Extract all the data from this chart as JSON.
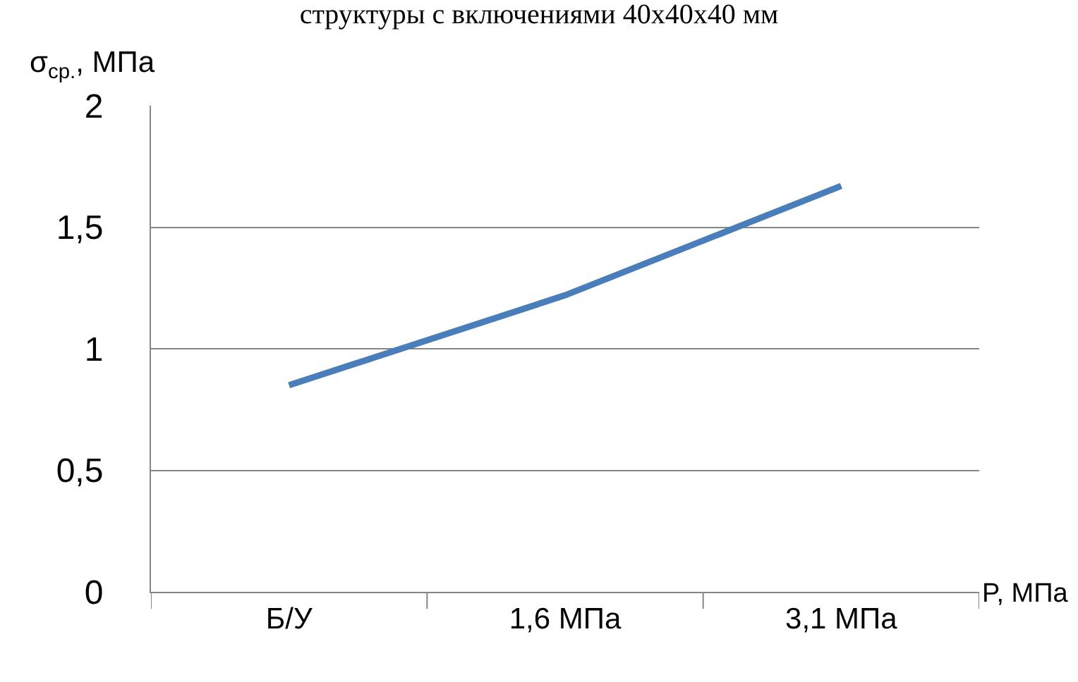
{
  "chart_data": {
    "type": "line",
    "title": "структуры с включениями 40х40х40 мм",
    "ylabel": "σ$_{ср.}$, МПа",
    "xlabel": "P, МПа",
    "categories": [
      "Б/У",
      "1,6 МПа",
      "3,1 МПа"
    ],
    "series": [
      {
        "color": "#4a7ebb",
        "values": [
          0.85,
          1.22,
          1.67
        ]
      }
    ],
    "ylim": [
      0,
      2
    ],
    "yticks": [
      {
        "value": 0,
        "label": "0"
      },
      {
        "value": 0.5,
        "label": "0,5"
      },
      {
        "value": 1,
        "label": "1"
      },
      {
        "value": 1.5,
        "label": "1,5"
      },
      {
        "value": 2,
        "label": "2"
      }
    ],
    "grid": "y",
    "marker": "none",
    "line_style": "solid"
  }
}
